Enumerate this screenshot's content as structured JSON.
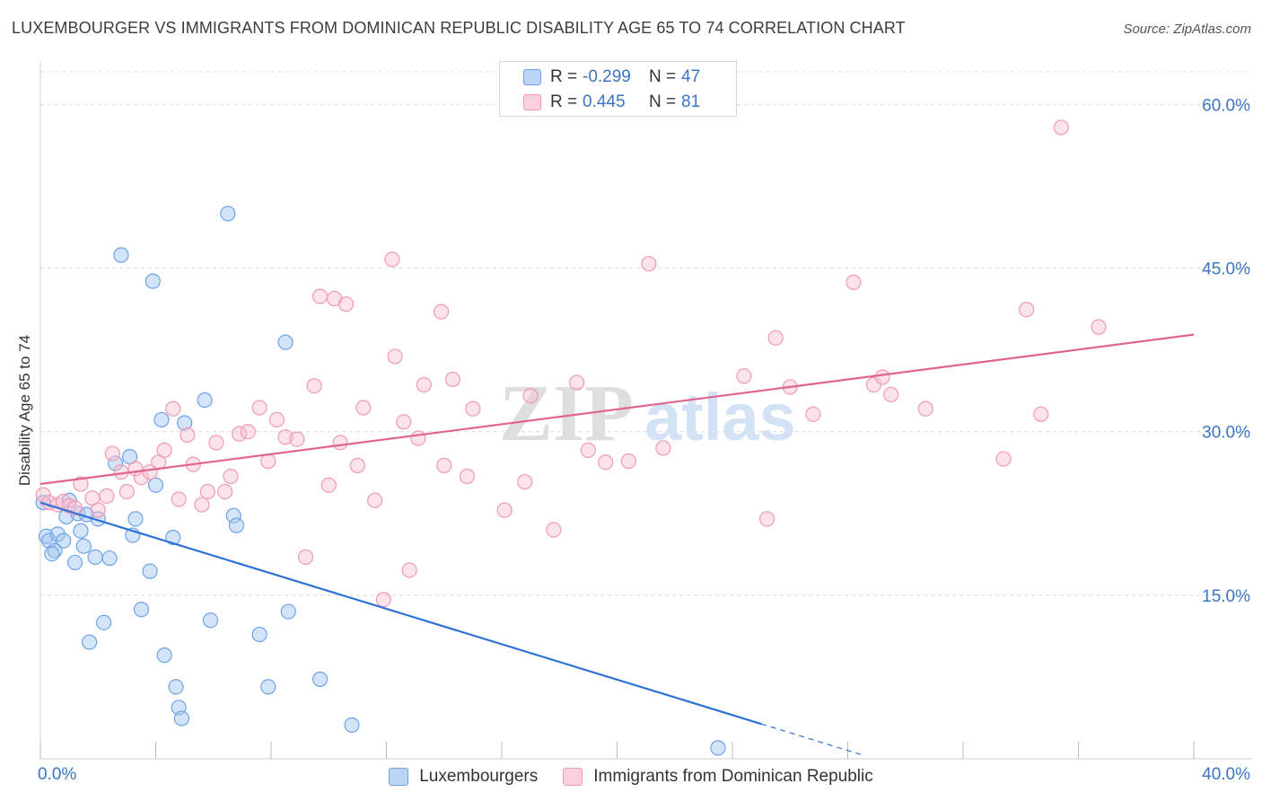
{
  "title": "LUXEMBOURGER VS IMMIGRANTS FROM DOMINICAN REPUBLIC DISABILITY AGE 65 TO 74 CORRELATION CHART",
  "source": "Source: ZipAtlas.com",
  "watermark": {
    "part1": "ZIP",
    "part2": "atlas"
  },
  "legend": {
    "rows": [
      {
        "r_label": "R =",
        "r_value": "-0.299",
        "n_label": "N =",
        "n_value": "47"
      },
      {
        "r_label": "R =",
        "r_value": "0.445",
        "n_label": "N =",
        "n_value": "81"
      }
    ]
  },
  "bottom_legend": {
    "items": [
      {
        "label": "Luxembourgers"
      },
      {
        "label": "Immigrants from Dominican Republic"
      }
    ]
  },
  "x_axis_labels": {
    "min": "0.0%",
    "max": "40.0%"
  },
  "chart_data": {
    "type": "scatter",
    "title": "LUXEMBOURGER VS IMMIGRANTS FROM DOMINICAN REPUBLIC DISABILITY AGE 65 TO 74 CORRELATION CHART",
    "xlabel": "",
    "ylabel": "Disability Age 65 to 74",
    "xlim": [
      0,
      40
    ],
    "ylim": [
      0,
      63
    ],
    "x_ticks": [
      0,
      4,
      8,
      12,
      16,
      20,
      24,
      28,
      32,
      36,
      40
    ],
    "y_ticks": [
      15,
      30,
      45,
      60
    ],
    "y_tick_labels": [
      "15.0%",
      "30.0%",
      "45.0%",
      "60.0%"
    ],
    "grid": true,
    "colors": {
      "Luxembourgers": "#6fa3e8",
      "Immigrants from Dominican Republic": "#f09ab5",
      "lux_line": "#2f72d6",
      "dom_line": "#e0648f"
    },
    "series": [
      {
        "name": "Luxembourgers",
        "r": -0.299,
        "n": 47,
        "trend": {
          "x0": 0,
          "y0": 23.5,
          "x1": 25,
          "y1": 3.2,
          "dash_to_x": 28.5
        },
        "points": [
          [
            0.1,
            23.5
          ],
          [
            0.2,
            20.4
          ],
          [
            0.3,
            20.0
          ],
          [
            0.5,
            19.1
          ],
          [
            0.6,
            20.6
          ],
          [
            0.8,
            20.0
          ],
          [
            0.9,
            22.2
          ],
          [
            1.0,
            23.7
          ],
          [
            1.2,
            18.0
          ],
          [
            1.3,
            22.5
          ],
          [
            1.4,
            20.9
          ],
          [
            1.5,
            19.5
          ],
          [
            1.6,
            22.4
          ],
          [
            1.7,
            10.7
          ],
          [
            1.9,
            18.5
          ],
          [
            2.0,
            22.0
          ],
          [
            2.2,
            12.5
          ],
          [
            2.4,
            18.4
          ],
          [
            2.6,
            27.1
          ],
          [
            2.8,
            46.2
          ],
          [
            3.1,
            27.7
          ],
          [
            3.2,
            20.5
          ],
          [
            3.3,
            22.0
          ],
          [
            3.5,
            13.7
          ],
          [
            3.8,
            17.2
          ],
          [
            3.9,
            43.8
          ],
          [
            4.0,
            25.1
          ],
          [
            4.2,
            31.1
          ],
          [
            4.3,
            9.5
          ],
          [
            4.6,
            20.3
          ],
          [
            4.7,
            6.6
          ],
          [
            4.8,
            4.7
          ],
          [
            4.9,
            3.7
          ],
          [
            5.0,
            30.8
          ],
          [
            5.7,
            32.9
          ],
          [
            5.9,
            12.7
          ],
          [
            6.5,
            50.0
          ],
          [
            6.7,
            22.3
          ],
          [
            6.8,
            21.4
          ],
          [
            7.6,
            11.4
          ],
          [
            7.9,
            6.6
          ],
          [
            8.5,
            38.2
          ],
          [
            8.6,
            13.5
          ],
          [
            9.7,
            7.3
          ],
          [
            10.8,
            3.1
          ],
          [
            23.5,
            1.0
          ],
          [
            0.4,
            18.8
          ]
        ]
      },
      {
        "name": "Immigrants from Dominican Republic",
        "r": 0.445,
        "n": 81,
        "trend": {
          "x0": 0,
          "y0": 25.2,
          "x1": 40,
          "y1": 38.9
        },
        "points": [
          [
            0.1,
            24.2
          ],
          [
            0.3,
            23.5
          ],
          [
            0.6,
            23.3
          ],
          [
            0.8,
            23.6
          ],
          [
            1.0,
            23.2
          ],
          [
            1.2,
            23.0
          ],
          [
            1.4,
            25.2
          ],
          [
            1.8,
            23.9
          ],
          [
            2.0,
            22.8
          ],
          [
            2.3,
            24.1
          ],
          [
            2.5,
            28.0
          ],
          [
            2.8,
            26.3
          ],
          [
            3.0,
            24.5
          ],
          [
            3.3,
            26.6
          ],
          [
            3.5,
            25.8
          ],
          [
            3.8,
            26.3
          ],
          [
            4.1,
            27.2
          ],
          [
            4.3,
            28.3
          ],
          [
            4.6,
            32.1
          ],
          [
            4.8,
            23.8
          ],
          [
            5.1,
            29.7
          ],
          [
            5.3,
            27.0
          ],
          [
            5.6,
            23.3
          ],
          [
            5.8,
            24.5
          ],
          [
            6.1,
            29.0
          ],
          [
            6.4,
            24.5
          ],
          [
            6.6,
            25.9
          ],
          [
            6.9,
            29.8
          ],
          [
            7.2,
            30.0
          ],
          [
            7.6,
            32.2
          ],
          [
            7.9,
            27.3
          ],
          [
            8.2,
            31.1
          ],
          [
            8.5,
            29.5
          ],
          [
            8.9,
            29.3
          ],
          [
            9.2,
            18.5
          ],
          [
            9.5,
            34.2
          ],
          [
            9.7,
            42.4
          ],
          [
            10.0,
            25.1
          ],
          [
            10.2,
            42.2
          ],
          [
            10.4,
            29.0
          ],
          [
            10.6,
            41.7
          ],
          [
            11.0,
            26.9
          ],
          [
            11.2,
            32.2
          ],
          [
            11.6,
            23.7
          ],
          [
            11.9,
            14.6
          ],
          [
            12.2,
            45.8
          ],
          [
            12.3,
            36.9
          ],
          [
            12.6,
            30.9
          ],
          [
            12.8,
            17.3
          ],
          [
            13.1,
            29.4
          ],
          [
            13.3,
            34.3
          ],
          [
            13.9,
            41.0
          ],
          [
            14.0,
            26.9
          ],
          [
            14.3,
            34.8
          ],
          [
            14.8,
            25.9
          ],
          [
            15.0,
            32.1
          ],
          [
            16.1,
            22.8
          ],
          [
            16.8,
            25.4
          ],
          [
            17.0,
            33.3
          ],
          [
            17.8,
            21.0
          ],
          [
            18.6,
            34.5
          ],
          [
            19.0,
            28.3
          ],
          [
            19.6,
            27.2
          ],
          [
            20.4,
            27.3
          ],
          [
            21.1,
            45.4
          ],
          [
            21.6,
            28.5
          ],
          [
            24.4,
            35.1
          ],
          [
            25.2,
            22.0
          ],
          [
            25.5,
            38.6
          ],
          [
            26.0,
            34.1
          ],
          [
            26.8,
            31.6
          ],
          [
            28.2,
            43.7
          ],
          [
            28.9,
            34.3
          ],
          [
            29.2,
            35.0
          ],
          [
            29.5,
            33.4
          ],
          [
            30.7,
            32.1
          ],
          [
            33.4,
            27.5
          ],
          [
            34.2,
            41.2
          ],
          [
            34.7,
            31.6
          ],
          [
            35.4,
            57.9
          ],
          [
            36.7,
            39.6
          ]
        ]
      }
    ]
  }
}
